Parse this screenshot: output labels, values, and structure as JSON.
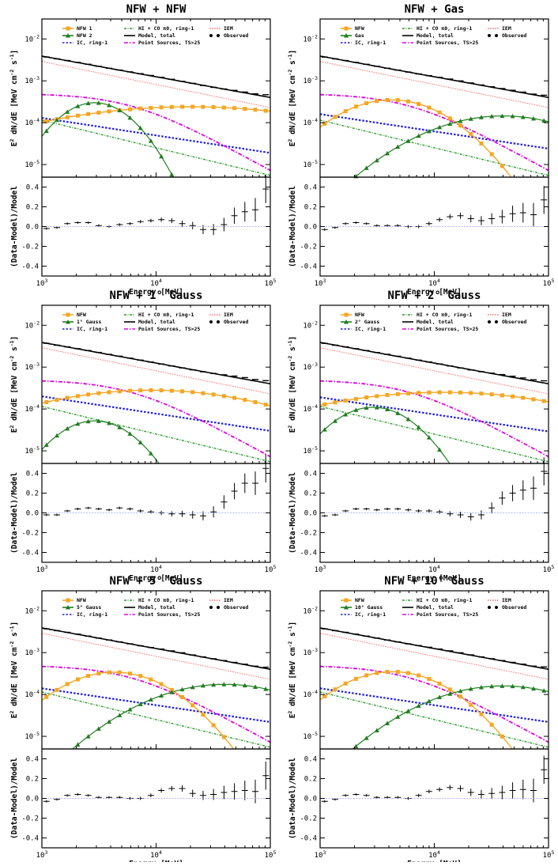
{
  "chart_data": [
    {
      "type": "line",
      "title": "NFW + NFW",
      "xlabel": "Energy [MeV]",
      "ylabel_top": "E^2 dN/dE [MeV cm^-2 s^-1]",
      "ylabel_bottom": "(Data-Model)/Model",
      "x_scale": "log",
      "xlim": [
        1000,
        100000
      ],
      "y_scale": "log",
      "ylim": [
        5e-06,
        0.03
      ],
      "resid_ylim": [
        -0.5,
        0.5
      ],
      "x_ticks": [
        "10^3",
        "10^4",
        "10^5"
      ],
      "y_ticks": [
        "10^-5",
        "10^-4",
        "10^-3",
        "10^-2"
      ],
      "resid_ticks": [
        "0.4",
        "0.2",
        "0.0",
        "-0.2",
        "-0.4"
      ],
      "legend": [
        "NFW 1",
        "NFW 2",
        "IC, ring-1",
        "HI + CO π0, ring-1",
        "Model, total",
        "Point Sources, TS>25",
        "IEM",
        "Observed"
      ],
      "legend_position": "top",
      "comp1": {
        "name": "NFW 1",
        "peak_x": 20000,
        "peak_y": 0.00024,
        "sigma": 1.0
      },
      "comp2": {
        "name": "NFW 2",
        "peak_x": 2900,
        "peak_y": 0.0003,
        "sigma": 0.24
      },
      "ic": {
        "y_start": 0.00013,
        "y_end": 1.9e-05
      },
      "residuals": [
        -0.02,
        -0.01,
        0.03,
        0.04,
        0.04,
        0.01,
        0.0,
        0.02,
        0.03,
        0.05,
        0.06,
        0.07,
        0.06,
        0.03,
        0.01,
        -0.03,
        -0.03,
        0.02,
        0.11,
        0.15,
        0.17,
        0.38
      ]
    },
    {
      "type": "line",
      "title": "NFW + Gas",
      "xlabel": "Energy [MeV]",
      "ylabel_top": "E^2 dN/dE [MeV cm^-2 s^-1]",
      "ylabel_bottom": "(Data-Model)/Model",
      "x_scale": "log",
      "xlim": [
        1000,
        100000
      ],
      "y_scale": "log",
      "ylim": [
        5e-06,
        0.03
      ],
      "resid_ylim": [
        -0.5,
        0.5
      ],
      "x_ticks": [
        "10^3",
        "10^4",
        "10^5"
      ],
      "y_ticks": [
        "10^-5",
        "10^-4",
        "10^-3",
        "10^-2"
      ],
      "resid_ticks": [
        "0.4",
        "0.2",
        "0.0",
        "-0.2",
        "-0.4"
      ],
      "legend": [
        "NFW",
        "Gas",
        "IC, ring-1",
        "HI + CO π0, ring-1",
        "Model, total",
        "Point Sources, TS>25",
        "IEM",
        "Observed"
      ],
      "legend_position": "top",
      "comp1": {
        "name": "NFW",
        "peak_x": 4200,
        "peak_y": 0.00035,
        "sigma": 0.36
      },
      "comp2": {
        "name": "Gas",
        "peak_x": 40000,
        "peak_y": 0.000145,
        "sigma": 0.5
      },
      "ic": {
        "y_start": 0.00016,
        "y_end": 2.4e-05
      },
      "residuals": [
        -0.03,
        -0.01,
        0.03,
        0.04,
        0.03,
        0.01,
        0.01,
        0.01,
        0.0,
        0.0,
        0.03,
        0.07,
        0.1,
        0.11,
        0.08,
        0.06,
        0.08,
        0.1,
        0.13,
        0.14,
        0.12,
        0.27
      ]
    },
    {
      "type": "line",
      "title": "NFW + 1° Gauss",
      "xlabel": "Energy [MeV]",
      "ylabel_top": "E^2 dN/dE [MeV cm^-2 s^-1]",
      "ylabel_bottom": "(Data-Model)/Model",
      "x_scale": "log",
      "xlim": [
        1000,
        100000
      ],
      "y_scale": "log",
      "ylim": [
        5e-06,
        0.03
      ],
      "resid_ylim": [
        -0.5,
        0.5
      ],
      "x_ticks": [
        "10^3",
        "10^4",
        "10^5"
      ],
      "y_ticks": [
        "10^-5",
        "10^-4",
        "10^-3",
        "10^-2"
      ],
      "resid_ticks": [
        "0.4",
        "0.2",
        "0.0",
        "-0.2",
        "-0.4"
      ],
      "legend": [
        "NFW",
        "1° Gauss",
        "IC, ring-1",
        "HI + CO π0, ring-1",
        "Model, total",
        "Point Sources, TS>25",
        "IEM",
        "Observed"
      ],
      "legend_position": "top",
      "comp1": {
        "name": "NFW",
        "peak_x": 9000,
        "peak_y": 0.00028,
        "sigma": 0.8
      },
      "comp2": {
        "name": "1° Gauss",
        "peak_x": 2900,
        "peak_y": 5.2e-05,
        "sigma": 0.26
      },
      "ic": {
        "y_start": 0.0002,
        "y_end": 3e-05
      },
      "residuals": [
        -0.02,
        -0.02,
        0.02,
        0.04,
        0.05,
        0.04,
        0.03,
        0.05,
        0.04,
        0.02,
        0.01,
        0.0,
        -0.01,
        -0.01,
        -0.02,
        -0.03,
        0.01,
        0.11,
        0.22,
        0.3,
        0.3,
        0.45
      ]
    },
    {
      "type": "line",
      "title": "NFW + 2° Gauss",
      "xlabel": "Energy [MeV]",
      "ylabel_top": "E^2 dN/dE [MeV cm^-2 s^-1]",
      "ylabel_bottom": "(Data-Model)/Model",
      "x_scale": "log",
      "xlim": [
        1000,
        100000
      ],
      "y_scale": "log",
      "ylim": [
        5e-06,
        0.03
      ],
      "resid_ylim": [
        -0.5,
        0.5
      ],
      "x_ticks": [
        "10^3",
        "10^4",
        "10^5"
      ],
      "y_ticks": [
        "10^-5",
        "10^-4",
        "10^-3",
        "10^-2"
      ],
      "resid_ticks": [
        "0.4",
        "0.2",
        "0.0",
        "-0.2",
        "-0.4"
      ],
      "legend": [
        "NFW",
        "2° Gauss",
        "IC, ring-1",
        "HI + CO π0, ring-1",
        "Model, total",
        "Point Sources, TS>25",
        "IEM",
        "Observed"
      ],
      "legend_position": "top",
      "comp1": {
        "name": "NFW",
        "peak_x": 12000,
        "peak_y": 0.00025,
        "sigma": 0.9
      },
      "comp2": {
        "name": "2° Gauss",
        "peak_x": 2900,
        "peak_y": 0.00011,
        "sigma": 0.27
      },
      "ic": {
        "y_start": 0.00019,
        "y_end": 2.9e-05
      },
      "residuals": [
        -0.03,
        -0.02,
        0.02,
        0.04,
        0.04,
        0.03,
        0.04,
        0.04,
        0.03,
        0.02,
        0.02,
        0.01,
        -0.01,
        -0.02,
        -0.04,
        -0.02,
        0.05,
        0.15,
        0.2,
        0.23,
        0.25,
        0.42
      ]
    },
    {
      "type": "line",
      "title": "NFW + 5° Gauss",
      "xlabel": "Energy [MeV]",
      "ylabel_top": "E^2 dN/dE [MeV cm^-2 s^-1]",
      "ylabel_bottom": "(Data-Model)/Model",
      "x_scale": "log",
      "xlim": [
        1000,
        100000
      ],
      "y_scale": "log",
      "ylim": [
        5e-06,
        0.03
      ],
      "resid_ylim": [
        -0.5,
        0.5
      ],
      "x_ticks": [
        "10^3",
        "10^4",
        "10^5"
      ],
      "y_ticks": [
        "10^-5",
        "10^-4",
        "10^-3",
        "10^-2"
      ],
      "resid_ticks": [
        "0.4",
        "0.2",
        "0.0",
        "-0.2",
        "-0.4"
      ],
      "legend": [
        "NFW",
        "5° Gauss",
        "IC, ring-1",
        "HI + CO π0, ring-1",
        "Model, total",
        "Point Sources, TS>25",
        "IEM",
        "Observed"
      ],
      "legend_position": "top",
      "comp1": {
        "name": "NFW",
        "peak_x": 4300,
        "peak_y": 0.00034,
        "sigma": 0.36
      },
      "comp2": {
        "name": "5° Gauss",
        "peak_x": 40000,
        "peak_y": 0.000175,
        "sigma": 0.5
      },
      "ic": {
        "y_start": 0.00014,
        "y_end": 2.2e-05
      },
      "residuals": [
        -0.03,
        -0.01,
        0.03,
        0.04,
        0.03,
        0.01,
        0.01,
        0.01,
        0.0,
        0.0,
        0.03,
        0.08,
        0.1,
        0.1,
        0.05,
        0.03,
        0.04,
        0.06,
        0.07,
        0.08,
        0.07,
        0.23
      ]
    },
    {
      "type": "line",
      "title": "NFW + 10° Gauss",
      "xlabel": "Energy [MeV]",
      "ylabel_top": "E^2 dN/dE [MeV cm^-2 s^-1]",
      "ylabel_bottom": "(Data-Model)/Model",
      "x_scale": "log",
      "xlim": [
        1000,
        100000
      ],
      "y_scale": "log",
      "ylim": [
        5e-06,
        0.03
      ],
      "resid_ylim": [
        -0.5,
        0.5
      ],
      "x_ticks": [
        "10^3",
        "10^4",
        "10^5"
      ],
      "y_ticks": [
        "10^-5",
        "10^-4",
        "10^-3",
        "10^-2"
      ],
      "resid_ticks": [
        "0.4",
        "0.2",
        "0.0",
        "-0.2",
        "-0.4"
      ],
      "legend": [
        "NFW",
        "10° Gauss",
        "IC, ring-1",
        "HI + CO π0, ring-1",
        "Model, total",
        "Point Sources, TS>25",
        "IEM",
        "Observed"
      ],
      "legend_position": "top",
      "comp1": {
        "name": "NFW",
        "peak_x": 4300,
        "peak_y": 0.00035,
        "sigma": 0.36
      },
      "comp2": {
        "name": "10° Gauss",
        "peak_x": 40000,
        "peak_y": 0.00016,
        "sigma": 0.5
      },
      "ic": {
        "y_start": 0.00014,
        "y_end": 2.2e-05
      },
      "residuals": [
        -0.03,
        -0.01,
        0.03,
        0.04,
        0.03,
        0.01,
        0.01,
        0.01,
        0.0,
        0.03,
        0.07,
        0.09,
        0.11,
        0.1,
        0.06,
        0.04,
        0.05,
        0.06,
        0.08,
        0.09,
        0.08,
        0.29
      ]
    }
  ],
  "shared": {
    "gas_curve": {
      "y_start": 0.000115,
      "y_end": 5.5e-06
    },
    "total_curve": {
      "y_start": 0.0039,
      "y_end": 0.0004
    },
    "iem_curve": {
      "y_start": 0.0029,
      "y_end": 0.00023
    },
    "ps_curve": {
      "plateau": 0.0005,
      "y_end": 1.6e-05
    },
    "colors": {
      "comp1": "#f5a623",
      "comp2": "#1e7d1e",
      "ic": "#1f1fe0",
      "gas": "#2e9a2e",
      "total": "#000000",
      "ps": "#e000e0",
      "iem": "#ff6b6b",
      "zero_line": "#9aa0ff"
    }
  }
}
